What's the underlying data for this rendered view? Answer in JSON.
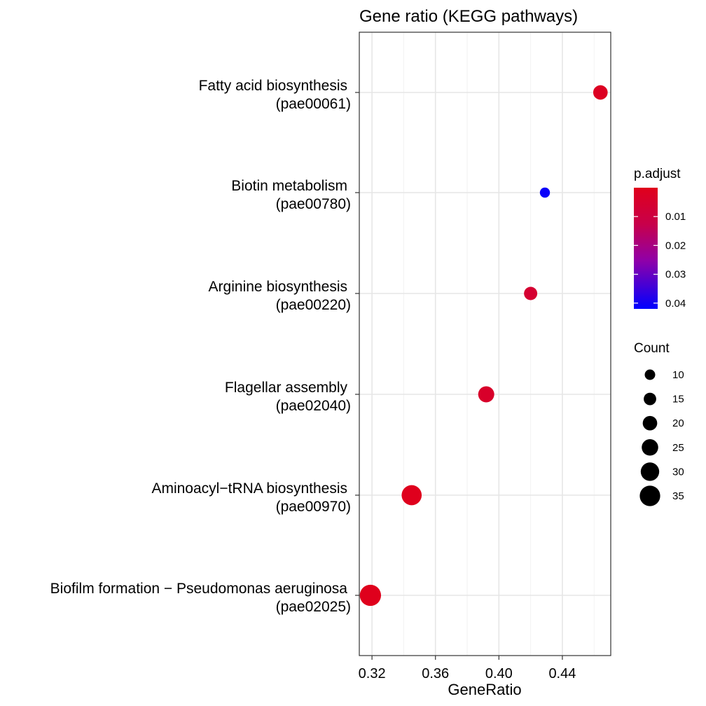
{
  "chart_data": {
    "type": "scatter",
    "title": "Gene ratio (KEGG pathways)",
    "xlabel": "GeneRatio",
    "ylabel": "",
    "xlim": [
      0.312,
      0.4705
    ],
    "x_ticks": [
      0.32,
      0.36,
      0.4,
      0.44
    ],
    "x_tick_labels": [
      "0.32",
      "0.36",
      "0.40",
      "0.44"
    ],
    "grid": true,
    "categories": [
      {
        "line1": "Fatty acid biosynthesis",
        "line2": "(pae00061)"
      },
      {
        "line1": "Biotin metabolism",
        "line2": "(pae00780)"
      },
      {
        "line1": "Arginine biosynthesis",
        "line2": "(pae00220)"
      },
      {
        "line1": "Flagellar assembly",
        "line2": "(pae02040)"
      },
      {
        "line1": "Aminoacyl−tRNA biosynthesis",
        "line2": "(pae00970)"
      },
      {
        "line1": "Biofilm formation − Pseudomonas aeruginosa",
        "line2": "(pae02025)"
      }
    ],
    "points": [
      {
        "x": 0.464,
        "count": 20,
        "p_adjust": 0.002
      },
      {
        "x": 0.429,
        "count": 9,
        "p_adjust": 0.041
      },
      {
        "x": 0.42,
        "count": 17,
        "p_adjust": 0.006
      },
      {
        "x": 0.392,
        "count": 24,
        "p_adjust": 0.004
      },
      {
        "x": 0.345,
        "count": 34,
        "p_adjust": 0.0005
      },
      {
        "x": 0.319,
        "count": 37,
        "p_adjust": 0.0004
      }
    ],
    "color_legend": {
      "title": "p.adjust",
      "range": [
        0.0,
        0.042
      ],
      "ticks": [
        0.01,
        0.02,
        0.03,
        0.04
      ],
      "tick_labels": [
        "0.01",
        "0.02",
        "0.03",
        "0.04"
      ],
      "low_color": "#e0001b",
      "high_color": "#0000ff"
    },
    "size_legend": {
      "title": "Count",
      "values": [
        10,
        15,
        20,
        25,
        30,
        35
      ],
      "labels": [
        "10",
        "15",
        "20",
        "25",
        "30",
        "35"
      ]
    },
    "legend_position": "right"
  }
}
